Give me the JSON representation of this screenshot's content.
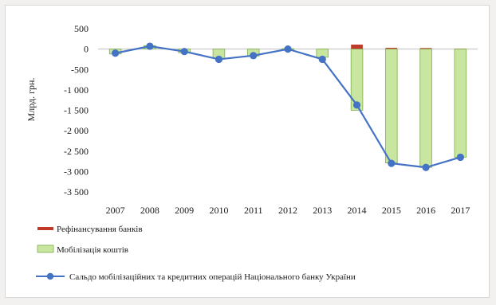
{
  "chart_data": {
    "type": "bar",
    "categories": [
      "2007",
      "2008",
      "2009",
      "2010",
      "2011",
      "2012",
      "2013",
      "2014",
      "2015",
      "2016",
      "2017"
    ],
    "ylabel": "Млрд. грн.",
    "ylim": [
      -3500,
      500
    ],
    "yticks": [
      500,
      0,
      -500,
      -1000,
      -1500,
      -2000,
      -2500,
      -3000,
      -3500
    ],
    "ytick_labels": [
      "500",
      "0",
      "-500",
      "-1 000",
      "-1 500",
      "-2 000",
      "-2 500",
      "-3 000",
      "-3 500"
    ],
    "grid": false,
    "legend_position": "bottom",
    "series": [
      {
        "name": "Рефінансування банків",
        "type": "bar",
        "color": "#c0392b",
        "values": [
          0,
          0,
          0,
          0,
          0,
          0,
          0,
          110,
          30,
          25,
          10
        ]
      },
      {
        "name": "Мобілізація коштів",
        "type": "bar",
        "color": "#c8e6a0",
        "edge_color": "#7fae4e",
        "values": [
          -120,
          85,
          -90,
          -230,
          -170,
          10,
          -200,
          -1500,
          -2790,
          -2900,
          -2650
        ]
      },
      {
        "name": "Сальдо мобілізаційних та кредитних операцій Національного банку України",
        "type": "line",
        "color": "#4472c4",
        "values": [
          -100,
          70,
          -60,
          -250,
          -160,
          0,
          -250,
          -1370,
          -2800,
          -2900,
          -2650
        ]
      }
    ]
  }
}
